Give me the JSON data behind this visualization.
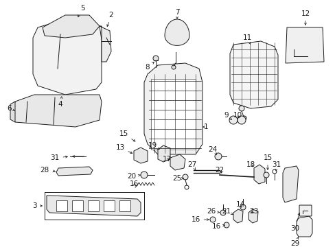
{
  "background_color": "#ffffff",
  "line_color": "#1a1a1a",
  "figsize": [
    4.89,
    3.6
  ],
  "dpi": 100,
  "font_size": 7.5,
  "lw": 0.7
}
